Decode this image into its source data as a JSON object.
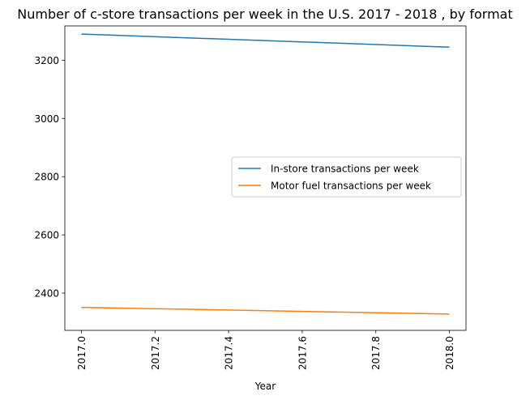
{
  "chart_data": {
    "type": "line",
    "title": "Number of c-store transactions per week in the U.S. 2017 - 2018 , by format",
    "xlabel": "Year",
    "ylabel": "",
    "x": [
      2017,
      2018
    ],
    "xlim": [
      2016.955,
      2018.045
    ],
    "ylim": [
      2272,
      3318
    ],
    "xticks": [
      2017.0,
      2017.2,
      2017.4,
      2017.6,
      2017.8,
      2018.0
    ],
    "xtick_labels": [
      "2017.0",
      "2017.2",
      "2017.4",
      "2017.6",
      "2017.8",
      "2018.0"
    ],
    "yticks": [
      2400,
      2600,
      2800,
      3000,
      3200
    ],
    "ytick_labels": [
      "2400",
      "2600",
      "2800",
      "3000",
      "3200"
    ],
    "grid": false,
    "legend_position": "center-right",
    "series": [
      {
        "name": "In-store transactions per week",
        "values": [
          3290,
          3245
        ],
        "color": "#1f77b4"
      },
      {
        "name": "Motor fuel transactions per week",
        "values": [
          2351,
          2328
        ],
        "color": "#ff7f0e"
      }
    ]
  }
}
